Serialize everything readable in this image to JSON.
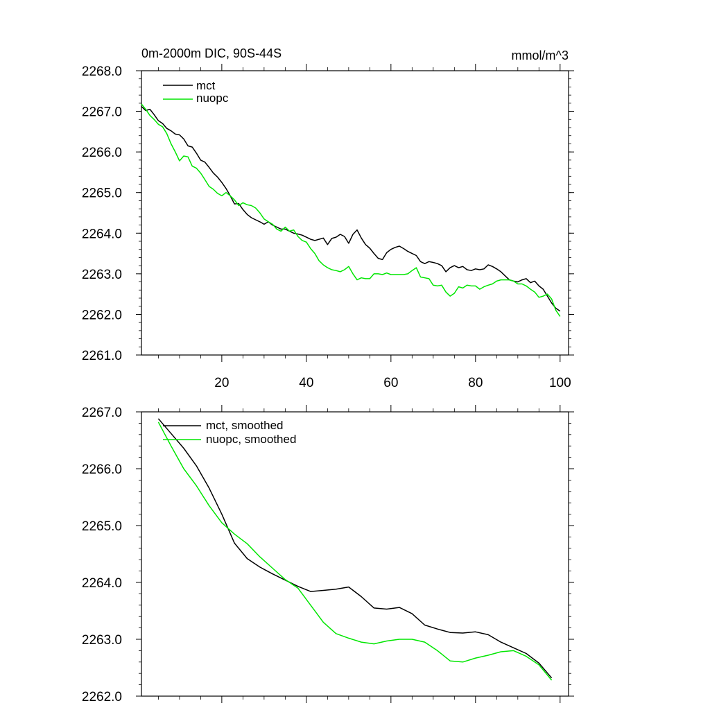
{
  "chart_data": [
    {
      "type": "line",
      "title": "0m-2000m DIC, 90S-44S",
      "units": "mmol/m^3",
      "xlim": [
        1,
        102
      ],
      "ylim": [
        2261.0,
        2268.0
      ],
      "yticks": [
        "2268.0",
        "2267.0",
        "2266.0",
        "2265.0",
        "2264.0",
        "2263.0",
        "2262.0",
        "2261.0"
      ],
      "xticks": [
        "20",
        "40",
        "60",
        "80",
        "100"
      ],
      "legend_position": "top-left",
      "series": [
        {
          "name": "mct",
          "color": "#000000",
          "x": [
            1,
            2,
            3,
            4,
            5,
            6,
            7,
            8,
            9,
            10,
            11,
            12,
            13,
            14,
            15,
            16,
            17,
            18,
            19,
            20,
            21,
            22,
            23,
            24,
            25,
            26,
            27,
            28,
            29,
            30,
            31,
            32,
            33,
            34,
            35,
            36,
            37,
            38,
            39,
            40,
            41,
            42,
            43,
            44,
            45,
            46,
            47,
            48,
            49,
            50,
            51,
            52,
            53,
            54,
            55,
            56,
            57,
            58,
            59,
            60,
            61,
            62,
            63,
            64,
            65,
            66,
            67,
            68,
            69,
            70,
            71,
            72,
            73,
            74,
            75,
            76,
            77,
            78,
            79,
            80,
            81,
            82,
            83,
            84,
            85,
            86,
            87,
            88,
            89,
            90,
            91,
            92,
            93,
            94,
            95,
            96,
            97,
            98,
            99,
            100
          ],
          "values": [
            2267.12,
            2267.02,
            2267.05,
            2266.92,
            2266.77,
            2266.7,
            2266.58,
            2266.52,
            2266.44,
            2266.42,
            2266.32,
            2266.15,
            2266.12,
            2265.97,
            2265.8,
            2265.75,
            2265.62,
            2265.48,
            2265.38,
            2265.25,
            2265.1,
            2264.92,
            2264.72,
            2264.73,
            2264.58,
            2264.46,
            2264.38,
            2264.33,
            2264.28,
            2264.22,
            2264.28,
            2264.2,
            2264.15,
            2264.1,
            2264.1,
            2264.05,
            2264.0,
            2263.98,
            2263.95,
            2263.9,
            2263.85,
            2263.82,
            2263.85,
            2263.88,
            2263.72,
            2263.87,
            2263.9,
            2263.97,
            2263.92,
            2263.75,
            2263.97,
            2264.08,
            2263.88,
            2263.72,
            2263.63,
            2263.5,
            2263.38,
            2263.35,
            2263.52,
            2263.6,
            2263.65,
            2263.68,
            2263.62,
            2263.55,
            2263.5,
            2263.45,
            2263.3,
            2263.25,
            2263.3,
            2263.28,
            2263.25,
            2263.2,
            2263.05,
            2263.15,
            2263.2,
            2263.15,
            2263.18,
            2263.1,
            2263.08,
            2263.12,
            2263.1,
            2263.12,
            2263.22,
            2263.18,
            2263.12,
            2263.05,
            2262.95,
            2262.85,
            2262.82,
            2262.8,
            2262.85,
            2262.88,
            2262.78,
            2262.82,
            2262.7,
            2262.62,
            2262.45,
            2262.28,
            2262.15,
            2262.08
          ]
        },
        {
          "name": "nuopc",
          "color": "#00e600",
          "x": [
            1,
            2,
            3,
            4,
            5,
            6,
            7,
            8,
            9,
            10,
            11,
            12,
            13,
            14,
            15,
            16,
            17,
            18,
            19,
            20,
            21,
            22,
            23,
            24,
            25,
            26,
            27,
            28,
            29,
            30,
            31,
            32,
            33,
            34,
            35,
            36,
            37,
            38,
            39,
            40,
            41,
            42,
            43,
            44,
            45,
            46,
            47,
            48,
            49,
            50,
            51,
            52,
            53,
            54,
            55,
            56,
            57,
            58,
            59,
            60,
            61,
            62,
            63,
            64,
            65,
            66,
            67,
            68,
            69,
            70,
            71,
            72,
            73,
            74,
            75,
            76,
            77,
            78,
            79,
            80,
            81,
            82,
            83,
            84,
            85,
            86,
            87,
            88,
            89,
            90,
            91,
            92,
            93,
            94,
            95,
            96,
            97,
            98,
            99,
            100
          ],
          "values": [
            2267.18,
            2267.05,
            2266.9,
            2266.8,
            2266.68,
            2266.62,
            2266.45,
            2266.2,
            2266.0,
            2265.78,
            2265.9,
            2265.88,
            2265.65,
            2265.6,
            2265.48,
            2265.32,
            2265.15,
            2265.08,
            2264.98,
            2264.92,
            2265.0,
            2264.92,
            2264.82,
            2264.68,
            2264.75,
            2264.7,
            2264.68,
            2264.62,
            2264.5,
            2264.35,
            2264.28,
            2264.22,
            2264.1,
            2264.05,
            2264.15,
            2264.05,
            2264.08,
            2263.92,
            2263.82,
            2263.78,
            2263.62,
            2263.5,
            2263.32,
            2263.22,
            2263.15,
            2263.1,
            2263.08,
            2263.05,
            2263.1,
            2263.18,
            2263.0,
            2262.85,
            2262.9,
            2262.88,
            2262.88,
            2263.0,
            2263.0,
            2262.98,
            2263.02,
            2262.98,
            2262.98,
            2262.98,
            2262.98,
            2263.0,
            2263.08,
            2263.15,
            2262.92,
            2262.9,
            2262.88,
            2262.72,
            2262.7,
            2262.72,
            2262.55,
            2262.45,
            2262.52,
            2262.68,
            2262.65,
            2262.72,
            2262.7,
            2262.7,
            2262.62,
            2262.68,
            2262.72,
            2262.75,
            2262.82,
            2262.85,
            2262.85,
            2262.85,
            2262.82,
            2262.75,
            2262.75,
            2262.7,
            2262.62,
            2262.55,
            2262.42,
            2262.45,
            2262.5,
            2262.38,
            2262.1,
            2261.95
          ]
        }
      ]
    },
    {
      "type": "line",
      "title": "",
      "xlim": [
        1,
        102
      ],
      "ylim": [
        2262.0,
        2267.0
      ],
      "yticks": [
        "2267.0",
        "2266.0",
        "2265.0",
        "2264.0",
        "2263.0",
        "2262.0"
      ],
      "legend_position": "top-left",
      "series": [
        {
          "name": "mct, smoothed",
          "color": "#000000",
          "x": [
            5,
            8,
            11,
            14,
            17,
            20,
            23,
            26,
            29,
            32,
            35,
            38,
            41,
            44,
            47,
            50,
            53,
            56,
            59,
            62,
            65,
            68,
            71,
            74,
            77,
            80,
            83,
            86,
            89,
            92,
            95,
            98
          ],
          "values": [
            2266.88,
            2266.62,
            2266.36,
            2266.05,
            2265.66,
            2265.2,
            2264.69,
            2264.42,
            2264.27,
            2264.15,
            2264.04,
            2263.93,
            2263.84,
            2263.86,
            2263.88,
            2263.92,
            2263.75,
            2263.55,
            2263.53,
            2263.56,
            2263.45,
            2263.25,
            2263.18,
            2263.12,
            2263.11,
            2263.13,
            2263.08,
            2262.95,
            2262.85,
            2262.75,
            2262.58,
            2262.32
          ]
        },
        {
          "name": "nuopc, smoothed",
          "color": "#00e600",
          "x": [
            5,
            8,
            11,
            14,
            17,
            20,
            23,
            26,
            29,
            32,
            35,
            38,
            41,
            44,
            47,
            50,
            53,
            56,
            59,
            62,
            65,
            68,
            71,
            74,
            77,
            80,
            83,
            86,
            89,
            92,
            95,
            98
          ],
          "values": [
            2266.82,
            2266.4,
            2266.0,
            2265.7,
            2265.35,
            2265.05,
            2264.85,
            2264.68,
            2264.45,
            2264.25,
            2264.05,
            2263.9,
            2263.6,
            2263.3,
            2263.1,
            2263.02,
            2262.95,
            2262.92,
            2262.97,
            2263.0,
            2263.0,
            2262.95,
            2262.8,
            2262.62,
            2262.6,
            2262.67,
            2262.72,
            2262.78,
            2262.8,
            2262.7,
            2262.55,
            2262.28
          ]
        }
      ]
    }
  ]
}
